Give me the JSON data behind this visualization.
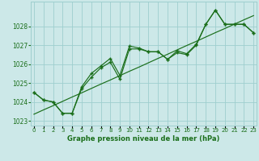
{
  "title": "Graphe pression niveau de la mer (hPa)",
  "hours": [
    0,
    1,
    2,
    3,
    4,
    5,
    6,
    7,
    8,
    9,
    10,
    11,
    12,
    13,
    14,
    15,
    16,
    17,
    18,
    19,
    20,
    21,
    22,
    23
  ],
  "series_main": [
    1024.5,
    1024.1,
    1024.0,
    1023.4,
    1023.4,
    1024.7,
    1025.3,
    1025.8,
    1026.1,
    1025.2,
    1026.8,
    1026.8,
    1026.65,
    1026.65,
    1026.25,
    1026.6,
    1026.5,
    1027.0,
    1028.1,
    1028.85,
    1028.1,
    1028.1,
    1028.1,
    1027.65
  ],
  "series_upper": [
    1024.5,
    1024.1,
    1024.0,
    1023.4,
    1023.4,
    1024.8,
    1025.5,
    1025.9,
    1026.3,
    1025.4,
    1026.95,
    1026.85,
    1026.65,
    1026.65,
    1026.25,
    1026.7,
    1026.55,
    1027.05,
    1028.1,
    1028.85,
    1028.1,
    1028.1,
    1028.1,
    1027.65
  ],
  "series_linear": [
    1023.35,
    1023.58,
    1023.8,
    1024.03,
    1024.26,
    1024.48,
    1024.71,
    1024.94,
    1025.16,
    1025.39,
    1025.62,
    1025.84,
    1026.07,
    1026.3,
    1026.52,
    1026.75,
    1026.98,
    1027.2,
    1027.43,
    1027.66,
    1027.88,
    1028.11,
    1028.34,
    1028.56
  ],
  "line_color": "#1a6e1a",
  "bg_color": "#cce8e8",
  "grid_color": "#9ecece",
  "ylim_min": 1022.75,
  "ylim_max": 1029.3,
  "yticks": [
    1023,
    1024,
    1025,
    1026,
    1027,
    1028
  ]
}
